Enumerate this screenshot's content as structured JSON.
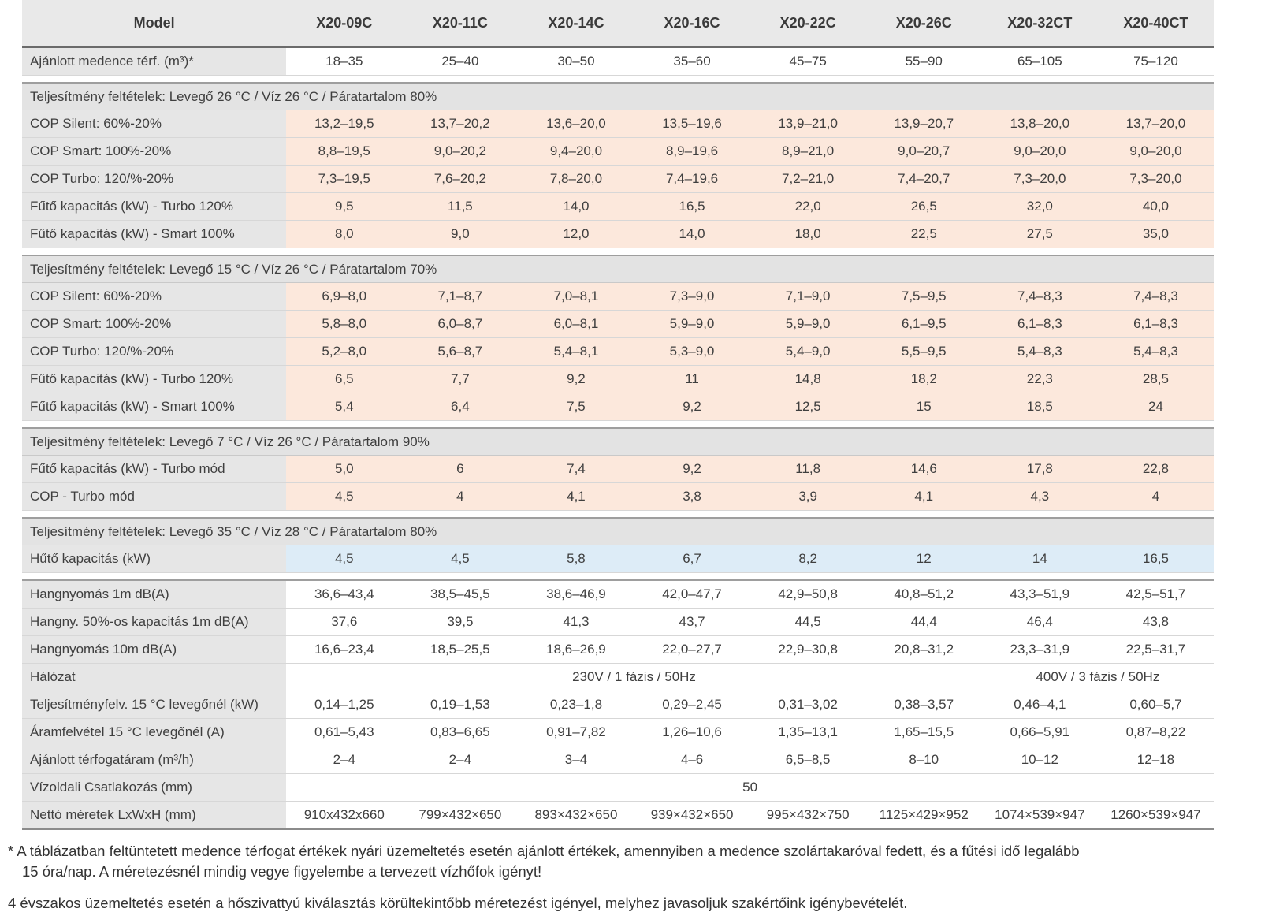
{
  "table": {
    "header": {
      "model_label": "Model",
      "models": [
        "X20-09C",
        "X20-11C",
        "X20-14C",
        "X20-16C",
        "X20-22C",
        "X20-26C",
        "X20-32CT",
        "X20-40CT"
      ]
    },
    "rows": [
      {
        "type": "data",
        "style": "plain",
        "label": "Ajánlott medence térf. (m³)*",
        "values": [
          "18–35",
          "25–40",
          "30–50",
          "35–60",
          "45–75",
          "55–90",
          "65–105",
          "75–120"
        ]
      },
      {
        "type": "gap"
      },
      {
        "type": "section",
        "title": "Teljesítmény feltételek: Levegő 26 °C / Víz 26 °C / Páratartalom 80%"
      },
      {
        "type": "data",
        "style": "peach",
        "label": "COP Silent: 60%-20%",
        "values": [
          "13,2–19,5",
          "13,7–20,2",
          "13,6–20,0",
          "13,5–19,6",
          "13,9–21,0",
          "13,9–20,7",
          "13,8–20,0",
          "13,7–20,0"
        ]
      },
      {
        "type": "data",
        "style": "peach",
        "label": "COP Smart: 100%-20%",
        "values": [
          "8,8–19,5",
          "9,0–20,2",
          "9,4–20,0",
          "8,9–19,6",
          "8,9–21,0",
          "9,0–20,7",
          "9,0–20,0",
          "9,0–20,0"
        ]
      },
      {
        "type": "data",
        "style": "peach",
        "label": "COP Turbo: 120/%-20%",
        "values": [
          "7,3–19,5",
          "7,6–20,2",
          "7,8–20,0",
          "7,4–19,6",
          "7,2–21,0",
          "7,4–20,7",
          "7,3–20,0",
          "7,3–20,0"
        ]
      },
      {
        "type": "data",
        "style": "peach",
        "label": "Fűtő kapacitás (kW) - Turbo 120%",
        "values": [
          "9,5",
          "11,5",
          "14,0",
          "16,5",
          "22,0",
          "26,5",
          "32,0",
          "40,0"
        ]
      },
      {
        "type": "data",
        "style": "peach",
        "label": "Fűtő kapacitás (kW) - Smart 100%",
        "values": [
          "8,0",
          "9,0",
          "12,0",
          "14,0",
          "18,0",
          "22,5",
          "27,5",
          "35,0"
        ]
      },
      {
        "type": "gap"
      },
      {
        "type": "section",
        "title": "Teljesítmény feltételek: Levegő 15 °C / Víz 26 °C / Páratartalom 70%"
      },
      {
        "type": "data",
        "style": "peach",
        "label": "COP Silent: 60%-20%",
        "values": [
          "6,9–8,0",
          "7,1–8,7",
          "7,0–8,1",
          "7,3–9,0",
          "7,1–9,0",
          "7,5–9,5",
          "7,4–8,3",
          "7,4–8,3"
        ]
      },
      {
        "type": "data",
        "style": "peach",
        "label": "COP Smart: 100%-20%",
        "values": [
          "5,8–8,0",
          "6,0–8,7",
          "6,0–8,1",
          "5,9–9,0",
          "5,9–9,0",
          "6,1–9,5",
          "6,1–8,3",
          "6,1–8,3"
        ]
      },
      {
        "type": "data",
        "style": "peach",
        "label": "COP Turbo: 120/%-20%",
        "values": [
          "5,2–8,0",
          "5,6–8,7",
          "5,4–8,1",
          "5,3–9,0",
          "5,4–9,0",
          "5,5–9,5",
          "5,4–8,3",
          "5,4–8,3"
        ]
      },
      {
        "type": "data",
        "style": "peach",
        "label": "Fűtő kapacitás (kW) - Turbo 120%",
        "values": [
          "6,5",
          "7,7",
          "9,2",
          "11",
          "14,8",
          "18,2",
          "22,3",
          "28,5"
        ]
      },
      {
        "type": "data",
        "style": "peach",
        "label": "Fűtő kapacitás (kW) - Smart 100%",
        "values": [
          "5,4",
          "6,4",
          "7,5",
          "9,2",
          "12,5",
          "15",
          "18,5",
          "24"
        ]
      },
      {
        "type": "gap"
      },
      {
        "type": "section",
        "title": "Teljesítmény feltételek: Levegő 7 °C / Víz 26 °C / Páratartalom 90%"
      },
      {
        "type": "data",
        "style": "peach",
        "label": "Fűtő kapacitás (kW) - Turbo mód",
        "values": [
          "5,0",
          "6",
          "7,4",
          "9,2",
          "11,8",
          "14,6",
          "17,8",
          "22,8"
        ]
      },
      {
        "type": "data",
        "style": "peach",
        "label": "COP - Turbo mód",
        "values": [
          "4,5",
          "4",
          "4,1",
          "3,8",
          "3,9",
          "4,1",
          "4,3",
          "4"
        ]
      },
      {
        "type": "gap"
      },
      {
        "type": "section",
        "title": "Teljesítmény feltételek: Levegő 35 °C / Víz 28 °C / Páratartalom 80%"
      },
      {
        "type": "data",
        "style": "blue",
        "label": "Hűtő kapacitás (kW)",
        "values": [
          "4,5",
          "4,5",
          "5,8",
          "6,7",
          "8,2",
          "12",
          "14",
          "16,5"
        ]
      },
      {
        "type": "gap"
      },
      {
        "type": "data",
        "style": "plain",
        "topline": true,
        "label": "Hangnyomás 1m dB(A)",
        "values": [
          "36,6–43,4",
          "38,5–45,5",
          "38,6–46,9",
          "42,0–47,7",
          "42,9–50,8",
          "40,8–51,2",
          "43,3–51,9",
          "42,5–51,7"
        ]
      },
      {
        "type": "data",
        "style": "plain",
        "label": "Hangny. 50%-os kapacitás 1m dB(A)",
        "values": [
          "37,6",
          "39,5",
          "41,3",
          "43,7",
          "44,5",
          "44,4",
          "46,4",
          "43,8"
        ]
      },
      {
        "type": "data",
        "style": "plain",
        "label": "Hangnyomás 10m dB(A)",
        "values": [
          "16,6–23,4",
          "18,5–25,5",
          "18,6–26,9",
          "22,0–27,7",
          "22,9–30,8",
          "20,8–31,2",
          "23,3–31,9",
          "22,5–31,7"
        ]
      },
      {
        "type": "data",
        "style": "plain",
        "label": "Hálózat",
        "spans": [
          {
            "text": "230V / 1 fázis / 50Hz",
            "cols": 6
          },
          {
            "text": "400V / 3 fázis / 50Hz",
            "cols": 2
          }
        ]
      },
      {
        "type": "data",
        "style": "plain",
        "label": "Teljesítményfelv. 15 °C levegőnél (kW)",
        "values": [
          "0,14–1,25",
          "0,19–1,53",
          "0,23–1,8",
          "0,29–2,45",
          "0,31–3,02",
          "0,38–3,57",
          "0,46–4,1",
          "0,60–5,7"
        ]
      },
      {
        "type": "data",
        "style": "plain",
        "label": "Áramfelvétel 15 °C levegőnél (A)",
        "values": [
          "0,61–5,43",
          "0,83–6,65",
          "0,91–7,82",
          "1,26–10,6",
          "1,35–13,1",
          "1,65–15,5",
          "0,66–5,91",
          "0,87–8,22"
        ]
      },
      {
        "type": "data",
        "style": "plain",
        "label": "Ajánlott térfogatáram (m³/h)",
        "values": [
          "2–4",
          "2–4",
          "3–4",
          "4–6",
          "6,5–8,5",
          "8–10",
          "10–12",
          "12–18"
        ]
      },
      {
        "type": "data",
        "style": "plain",
        "label": "Vízoldali Csatlakozás (mm)",
        "spans": [
          {
            "text": "50",
            "cols": 8
          }
        ]
      },
      {
        "type": "data",
        "style": "plain",
        "last": true,
        "label": "Nettó méretek LxWxH (mm)",
        "values": [
          "910x432x660",
          "799×432×650",
          "893×432×650",
          "939×432×650",
          "995×432×750",
          "1125×429×952",
          "1074×539×947",
          "1260×539×947"
        ]
      }
    ],
    "colors": {
      "header_bg": "#e9e9e9",
      "label_bg": "#e6e6e6",
      "section_bg": "#e3e3e3",
      "peach_bg": "#fce8dc",
      "blue_bg": "#ddecf7",
      "text": "#3f3f3f",
      "border_light": "#d7d7d7",
      "border_medium": "#9e9e9e",
      "border_dark": "#6b6b6b"
    }
  },
  "footnotes": {
    "asterisk_note": {
      "line1": "* A táblázatban feltüntetett medence térfogat értékek nyári üzemeltetés esetén ajánlott értékek, amennyiben a medence szolártakaróval fedett, és a fűtési idő legalább",
      "line2": "15 óra/nap. A méretezésnél mindig vegye figyelembe a tervezett vízhőfok igényt!"
    },
    "seasonal_note": "4 évszakos üzemeltetés esetén a hőszivattyú kiválasztás körültekintőbb méretezést igényel, melyhez javasoljuk szakértőink igénybevételét."
  }
}
